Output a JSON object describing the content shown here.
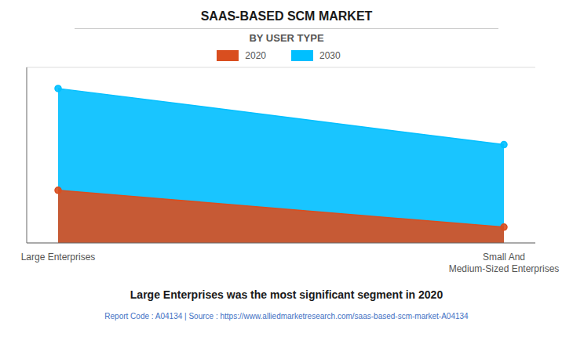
{
  "chart_data": {
    "type": "area",
    "title": "SAAS-BASED SCM MARKET",
    "subtitle": "BY USER TYPE",
    "categories": [
      "Large Enterprises",
      "Small And\nMedium-Sized Enterprises"
    ],
    "series": [
      {
        "name": "2020",
        "color": "#D94E1F",
        "values": [
          0.3,
          0.09
        ],
        "marker": "o"
      },
      {
        "name": "2030",
        "color": "#00BFFF",
        "values": [
          0.88,
          0.56
        ],
        "marker": "o"
      }
    ],
    "ylim": [
      0,
      1
    ],
    "yticks": [
      0,
      0.25,
      0.5,
      0.75,
      1
    ],
    "grid": true,
    "tick_labels": "x",
    "annotations": [
      "Large Enterprises was the most significant segment in 2020",
      "Report Code : A04134  |  Source : https://www.alliedmarketresearch.com/saas-based-scm-market-A04134"
    ]
  }
}
